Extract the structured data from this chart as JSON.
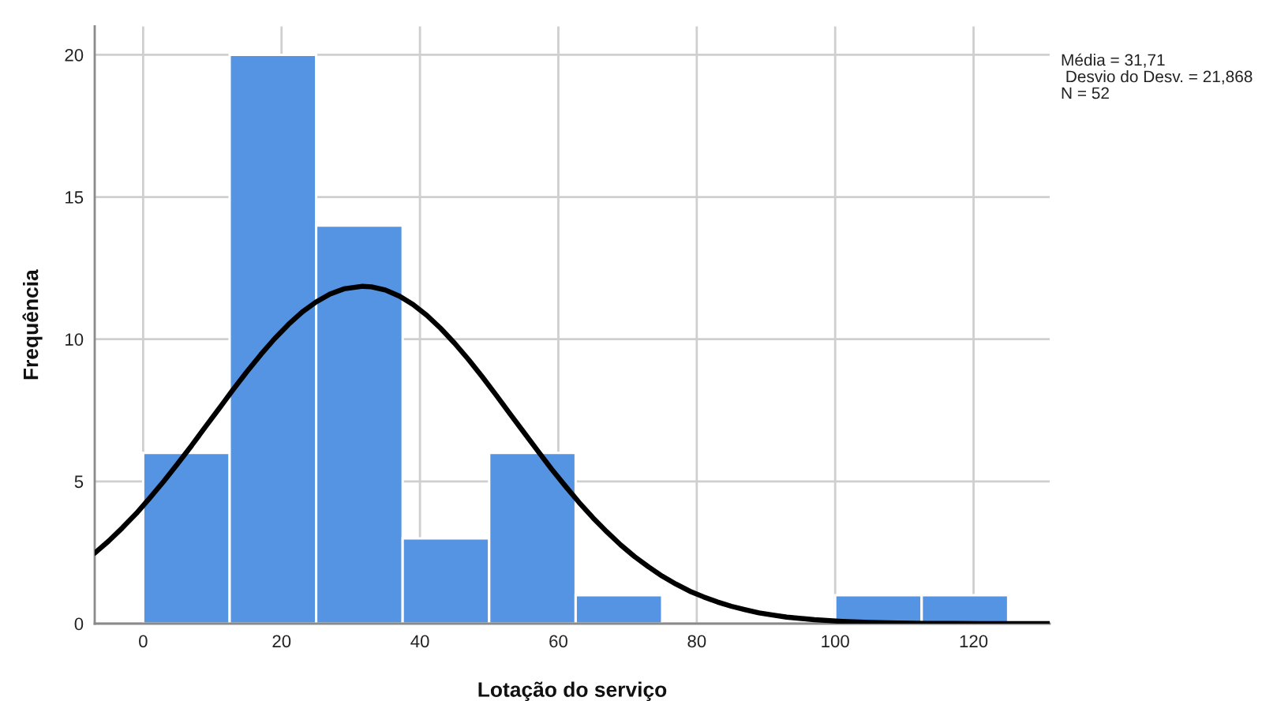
{
  "chart_data": {
    "type": "histogram",
    "xlabel": "Lotação do serviço",
    "ylabel": "Frequência",
    "series": [
      {
        "bins": [
          0,
          12.5,
          25,
          37.5,
          50,
          62.5,
          75,
          87.5,
          100,
          112.5,
          125
        ],
        "values": [
          6,
          20,
          14,
          3,
          6,
          1,
          0,
          0,
          1,
          1
        ],
        "color": "#5594e2"
      },
      {
        "type": "line",
        "color": "#000000",
        "x": [
          -7,
          -5,
          -3,
          -1,
          1,
          3,
          5,
          7,
          9,
          11,
          13,
          15,
          17,
          19,
          21,
          23,
          25,
          27,
          29,
          31.7,
          33,
          35,
          37,
          39,
          41,
          43,
          45,
          47,
          49,
          51,
          53,
          55,
          57,
          59,
          61,
          63,
          65,
          67,
          69,
          71,
          73,
          75,
          77,
          79,
          81,
          83,
          85,
          87,
          89,
          91,
          93,
          97,
          101,
          105,
          109,
          113,
          117,
          121,
          125,
          129,
          131
        ],
        "values": [
          2.48,
          2.9,
          3.37,
          3.87,
          4.43,
          5.01,
          5.63,
          6.26,
          6.92,
          7.57,
          8.23,
          8.86,
          9.46,
          10.02,
          10.52,
          10.96,
          11.31,
          11.59,
          11.77,
          11.86,
          11.84,
          11.73,
          11.52,
          11.22,
          10.84,
          10.38,
          9.86,
          9.29,
          8.68,
          8.04,
          7.38,
          6.73,
          6.08,
          5.44,
          4.84,
          4.26,
          3.72,
          3.23,
          2.77,
          2.36,
          2.0,
          1.67,
          1.39,
          1.14,
          0.94,
          0.76,
          0.61,
          0.49,
          0.38,
          0.3,
          0.23,
          0.14,
          0.08,
          0.04,
          0.02,
          0.01,
          0.01,
          0.0,
          0.0,
          0.0,
          0.0
        ]
      }
    ],
    "xlim": [
      -7,
      131
    ],
    "xticks": [
      0,
      20,
      40,
      60,
      80,
      100,
      120
    ],
    "ylim": [
      0,
      21
    ],
    "yticks": [
      0,
      5,
      10,
      15,
      20
    ],
    "grid": true,
    "annotations": [
      "Média = 31,71",
      " Desvio do Desv. = 21,868",
      "N = 52"
    ]
  }
}
